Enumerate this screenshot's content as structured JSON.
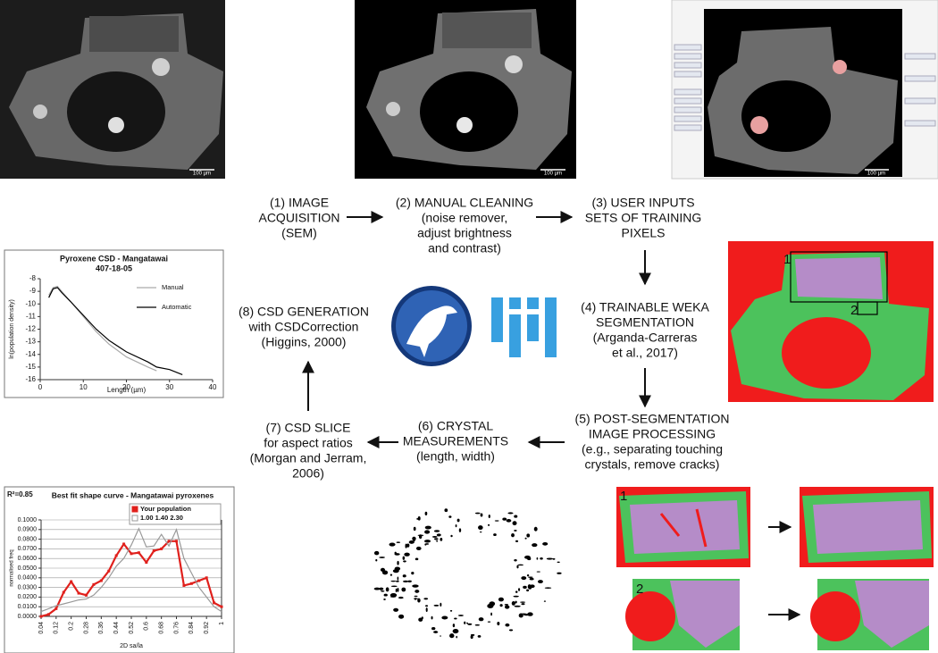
{
  "steps": [
    {
      "lines": [
        "(1) IMAGE",
        "ACQUISITION",
        "(SEM)"
      ]
    },
    {
      "lines": [
        "(2) MANUAL CLEANING",
        "(noise remover,",
        "adjust brightness",
        "and contrast)"
      ]
    },
    {
      "lines": [
        "(3) USER INPUTS",
        "SETS OF TRAINING",
        "PIXELS"
      ]
    },
    {
      "lines": [
        "(4) TRAINABLE WEKA",
        "SEGMENTATION",
        "(Arganda-Carreras",
        "et al., 2017)"
      ]
    },
    {
      "lines": [
        "(5) POST-SEGMENTATION",
        "IMAGE PROCESSING",
        "(e.g., separating touching",
        "crystals, remove cracks)"
      ]
    },
    {
      "lines": [
        "(6) CRYSTAL",
        "MEASUREMENTS",
        "(length, width)"
      ]
    },
    {
      "lines": [
        "(7) CSD SLICE",
        "for aspect ratios",
        "(Morgan and Jerram,",
        "2006)"
      ]
    },
    {
      "lines": [
        "(8) CSD GENERATION",
        "with CSDCorrection",
        "(Higgins, 2000)"
      ]
    }
  ],
  "images": [
    {
      "scale_bar": "100 µm"
    },
    {
      "scale_bar": "100 µm"
    },
    {
      "scale_bar": "100 µm"
    }
  ],
  "region_labels": [
    "1",
    "2"
  ],
  "crop_labels": [
    "1",
    "2"
  ],
  "chart_data": [
    {
      "type": "line",
      "title": "Pyroxene CSD - Mangatawai",
      "subtitle": "407-18-05",
      "x_label": "Length (µm)",
      "y_label": "ln(population density)",
      "x": [
        2,
        3,
        4,
        5,
        7,
        10,
        13,
        16,
        20,
        25,
        27,
        30,
        33
      ],
      "series": [
        {
          "name": "Manual",
          "color": "#aaaaaa",
          "values": [
            -9.3,
            -8.7,
            -8.6,
            -9.0,
            -9.8,
            -11.0,
            -12.2,
            -13.2,
            -14.2,
            -15.0,
            -15.3,
            null,
            null
          ]
        },
        {
          "name": "Automatic",
          "color": "#000000",
          "values": [
            -9.5,
            -8.8,
            -8.7,
            -9.1,
            -9.8,
            -10.9,
            -12.0,
            -12.9,
            -13.8,
            -14.6,
            -15.0,
            -15.2,
            -15.6
          ]
        }
      ],
      "xlim": [
        0,
        40
      ],
      "xticks": [
        0,
        10,
        20,
        30,
        40
      ],
      "ylim": [
        -16,
        -8
      ],
      "yticks": [
        -8,
        -9,
        -10,
        -11,
        -12,
        -13,
        -14,
        -15,
        -16
      ],
      "grid": false,
      "legend": "right"
    },
    {
      "type": "line",
      "title": "Best fit shape curve - Mangatawai pyroxenes",
      "annotation": "R²=0.85",
      "x_label": "2D sa/la",
      "y_label": "normalised freq",
      "x": [
        0.04,
        0.08,
        0.12,
        0.16,
        0.2,
        0.24,
        0.28,
        0.32,
        0.36,
        0.4,
        0.44,
        0.48,
        0.52,
        0.56,
        0.6,
        0.64,
        0.68,
        0.72,
        0.76,
        0.8,
        0.84,
        0.88,
        0.92,
        0.96,
        1
      ],
      "series": [
        {
          "name": "Your population",
          "color": "#e0201c",
          "marker": "square",
          "values": [
            0.0,
            0.002,
            0.008,
            0.025,
            0.036,
            0.024,
            0.022,
            0.033,
            0.037,
            0.047,
            0.063,
            0.075,
            0.065,
            0.066,
            0.056,
            0.068,
            0.07,
            0.078,
            0.078,
            0.032,
            0.034,
            0.037,
            0.04,
            0.014,
            0.01
          ]
        },
        {
          "name": "1.00 1.40 2.30",
          "color": "#999999",
          "values": [
            0.005,
            0.008,
            0.011,
            0.013,
            0.015,
            0.017,
            0.018,
            0.022,
            0.03,
            0.04,
            0.052,
            0.06,
            0.074,
            0.091,
            0.072,
            0.073,
            0.085,
            0.073,
            0.09,
            0.06,
            0.045,
            0.03,
            0.02,
            0.01,
            0.005
          ]
        }
      ],
      "xlim": [
        0.04,
        1
      ],
      "xticks": [
        0.04,
        0.12,
        0.2,
        0.28,
        0.36,
        0.44,
        0.52,
        0.6,
        0.68,
        0.76,
        0.84,
        0.92,
        1
      ],
      "ylim": [
        0,
        0.1
      ],
      "yticks": [
        {
          "value": 0,
          "label": "0.0000"
        },
        {
          "value": 0.01,
          "label": "0.0100"
        },
        {
          "value": 0.02,
          "label": "0.0200"
        },
        {
          "value": 0.03,
          "label": "0.0300"
        },
        {
          "value": 0.04,
          "label": "0.0400"
        },
        {
          "value": 0.05,
          "label": "0.0500"
        },
        {
          "value": 0.06,
          "label": "0.0600"
        },
        {
          "value": 0.07,
          "label": "0.0700"
        },
        {
          "value": 0.08,
          "label": "0.0800"
        },
        {
          "value": 0.09,
          "label": "0.0900"
        },
        {
          "value": 0.1,
          "label": "0.1000"
        }
      ],
      "grid": true,
      "legend": "upper right"
    }
  ]
}
